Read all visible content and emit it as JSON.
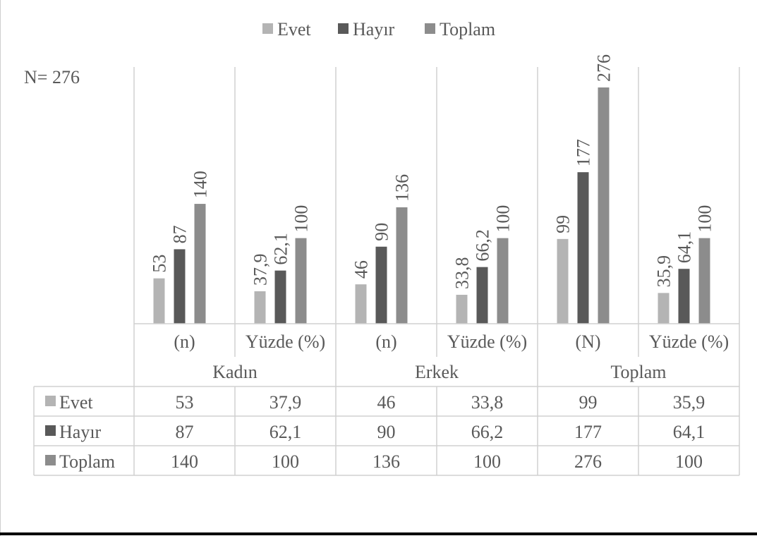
{
  "chart_data": {
    "type": "bar",
    "title": "",
    "annotation": "N= 276",
    "groups": [
      "Kadın",
      "Erkek",
      "Toplam"
    ],
    "categories": [
      "(n)",
      "Yüzde (%)",
      "(n)",
      "Yüzde (%)",
      "(N)",
      "Yüzde (%)"
    ],
    "category_group": [
      0,
      0,
      1,
      1,
      2,
      2
    ],
    "series": [
      {
        "name": "Evet",
        "color": "#b4b4b4",
        "values": [
          53,
          37.9,
          46,
          33.8,
          99,
          35.9
        ],
        "labels": [
          "53",
          "37,9",
          "46",
          "33,8",
          "99",
          "35,9"
        ]
      },
      {
        "name": "Hayır",
        "color": "#595959",
        "values": [
          87,
          62.1,
          90,
          66.2,
          177,
          64.1
        ],
        "labels": [
          "87",
          "62,1",
          "90",
          "66,2",
          "177",
          "64,1"
        ]
      },
      {
        "name": "Toplam",
        "color": "#8c8c8c",
        "values": [
          140,
          100,
          136,
          100,
          276,
          100
        ],
        "labels": [
          "140",
          "100",
          "136",
          "100",
          "276",
          "100"
        ]
      }
    ],
    "legend_position": "top",
    "data_table": true,
    "ylim": [
      0,
      300
    ],
    "grid": false
  }
}
